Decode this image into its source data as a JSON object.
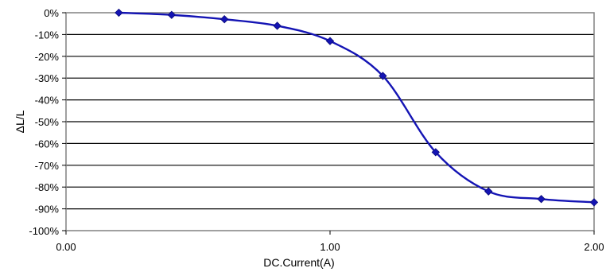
{
  "chart_data": {
    "type": "line",
    "title": "",
    "xlabel": "DC.Current(A)",
    "ylabel": "ΔL/L",
    "xlim": [
      0,
      2
    ],
    "ylim": [
      -100,
      0
    ],
    "x_ticks": [
      0,
      1,
      2
    ],
    "x_tick_labels": [
      "0.00",
      "1.00",
      "2.00"
    ],
    "y_ticks": [
      0,
      -10,
      -20,
      -30,
      -40,
      -50,
      -60,
      -70,
      -80,
      -90,
      -100
    ],
    "y_tick_labels": [
      "0%",
      "-10%",
      "-20%",
      "-30%",
      "-40%",
      "-50%",
      "-60%",
      "-70%",
      "-80%",
      "-90%",
      "-100%"
    ],
    "grid": "horizontal",
    "marker": "diamond",
    "smooth": true,
    "series": [
      {
        "x": [
          0.2,
          0.4,
          0.6,
          0.8,
          1.0,
          1.2,
          1.4,
          1.6,
          1.8,
          2.0
        ],
        "y": [
          0,
          -1,
          -3,
          -6,
          -13,
          -29,
          -64,
          -82,
          -85.5,
          -87
        ],
        "color": "#1414b4"
      }
    ]
  }
}
